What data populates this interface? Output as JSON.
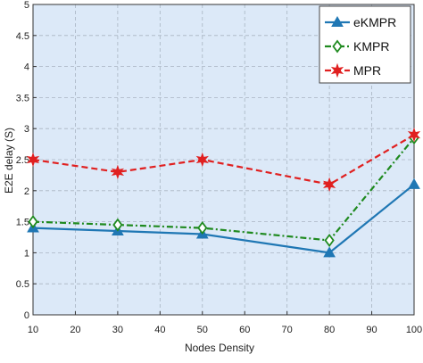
{
  "chart_data": {
    "type": "line",
    "xlabel": "Nodes Density",
    "ylabel": "E2E delay (S)",
    "xlim": [
      10,
      100
    ],
    "ylim": [
      0,
      5
    ],
    "xticks": [
      10,
      20,
      30,
      40,
      50,
      60,
      70,
      80,
      90,
      100
    ],
    "yticks": [
      0,
      0.5,
      1,
      1.5,
      2,
      2.5,
      3,
      3.5,
      4,
      4.5,
      5
    ],
    "xtick_labels": [
      "10",
      "20",
      "30",
      "40",
      "50",
      "60",
      "70",
      "80",
      "90",
      "100"
    ],
    "ytick_labels": [
      "0",
      "0.5",
      "1",
      "1.5",
      "2",
      "2.5",
      "3",
      "3.5",
      "4",
      "4.5",
      "5"
    ],
    "grid": true,
    "legend_position": "top-right",
    "background_color": "#dce9f8",
    "x": [
      10,
      30,
      50,
      80,
      100
    ],
    "series": [
      {
        "name": "eKMPR",
        "values": [
          1.4,
          1.35,
          1.3,
          1.0,
          2.1
        ],
        "color": "#1f77b4",
        "marker": "triangle",
        "dash": "solid"
      },
      {
        "name": "KMPR",
        "values": [
          1.5,
          1.45,
          1.4,
          1.2,
          2.85
        ],
        "color": "#1f8a1f",
        "marker": "diamond",
        "dash": "dashdot"
      },
      {
        "name": "MPR",
        "values": [
          2.5,
          2.3,
          2.5,
          2.1,
          2.9
        ],
        "color": "#e02020",
        "marker": "star",
        "dash": "dashed"
      }
    ]
  }
}
